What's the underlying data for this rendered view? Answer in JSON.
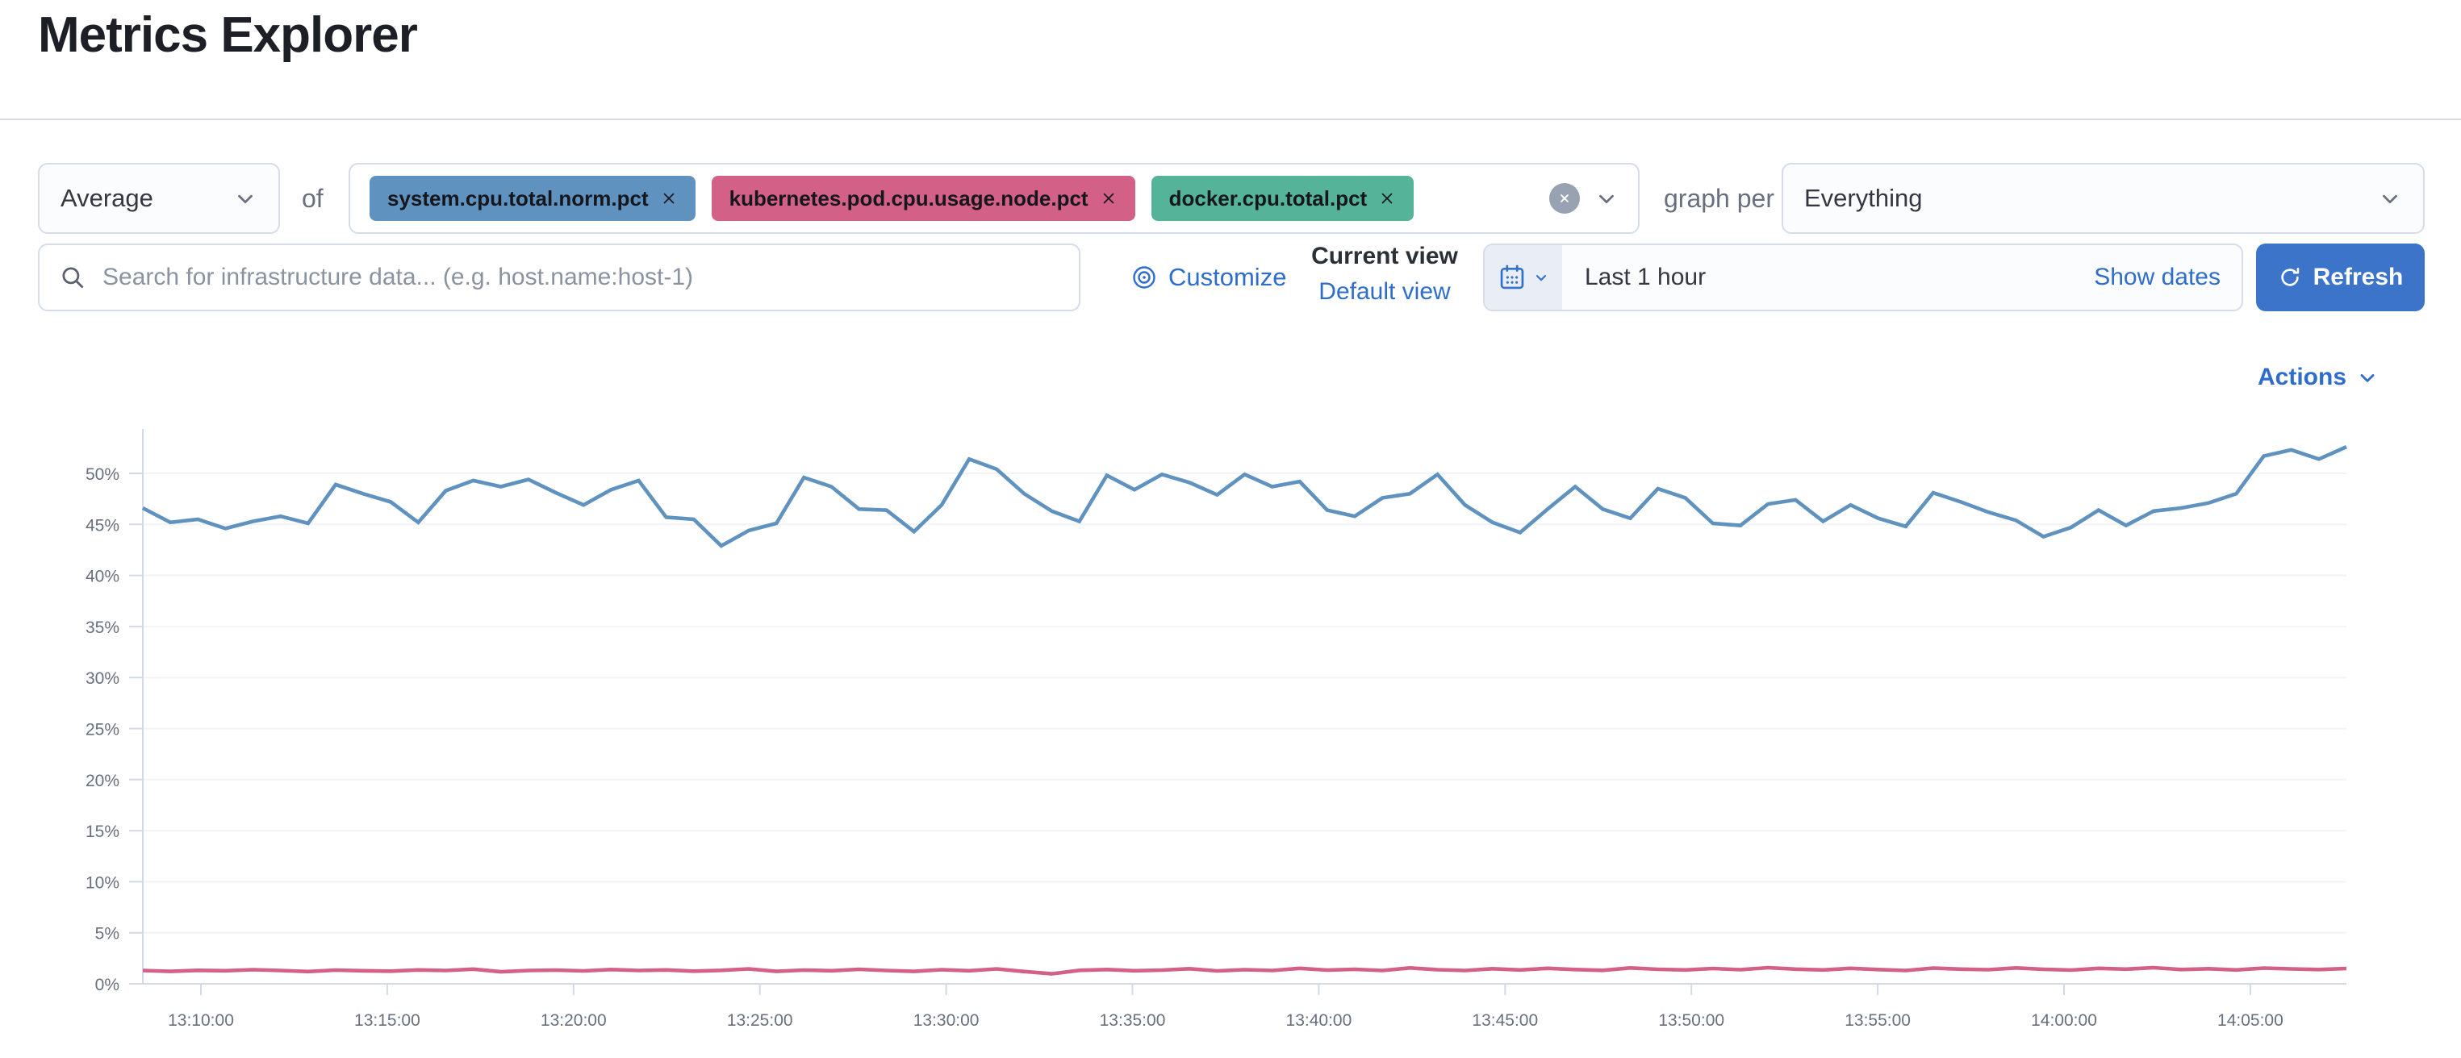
{
  "header": {
    "title": "Metrics Explorer"
  },
  "controls": {
    "aggregation_value": "Average",
    "of_label": "of",
    "metrics": [
      {
        "label": "system.cpu.total.norm.pct",
        "color": "#6092C0"
      },
      {
        "label": "kubernetes.pod.cpu.usage.node.pct",
        "color": "#D36086"
      },
      {
        "label": "docker.cpu.total.pct",
        "color": "#54B399"
      }
    ],
    "graph_per_label": "graph per",
    "graph_per_value": "Everything"
  },
  "search": {
    "placeholder": "Search for infrastructure data... (e.g. host.name:host-1)"
  },
  "view_controls": {
    "customize_label": "Customize",
    "current_view_label": "Current view",
    "default_view_label": "Default view"
  },
  "time_picker": {
    "value": "Last 1 hour",
    "show_dates_label": "Show dates",
    "refresh_label": "Refresh"
  },
  "actions": {
    "label": "Actions"
  },
  "colors": {
    "link": "#2F6DCC",
    "primary_button": "#3B74C9",
    "axis": "#D3DAE6",
    "grid": "#F1F3F8",
    "tick_text": "#69707D"
  },
  "chart_data": {
    "type": "line",
    "title": "",
    "xlabel": "",
    "ylabel": "",
    "legend": "none",
    "grid": true,
    "ylim": [
      0,
      54
    ],
    "y_tick_labels": [
      "0%",
      "5%",
      "10%",
      "15%",
      "20%",
      "25%",
      "30%",
      "35%",
      "40%",
      "45%",
      "50%"
    ],
    "x_tick_labels": [
      "13:10:00",
      "13:15:00",
      "13:20:00",
      "13:25:00",
      "13:30:00",
      "13:35:00",
      "13:40:00",
      "13:45:00",
      "13:50:00",
      "13:55:00",
      "14:00:00",
      "14:05:00"
    ],
    "series": [
      {
        "name": "system.cpu.total.norm.pct",
        "color": "#6092C0",
        "values": [
          46.6,
          45.2,
          45.5,
          44.6,
          45.3,
          45.8,
          45.1,
          48.9,
          48.0,
          47.2,
          45.2,
          48.3,
          49.3,
          48.7,
          49.4,
          48.1,
          46.9,
          48.4,
          49.3,
          45.7,
          45.5,
          42.9,
          44.4,
          45.1,
          49.6,
          48.7,
          46.5,
          46.4,
          44.3,
          46.9,
          51.4,
          50.4,
          48.0,
          46.3,
          45.3,
          49.8,
          48.4,
          49.9,
          49.1,
          47.9,
          49.9,
          48.7,
          49.2,
          46.4,
          45.8,
          47.6,
          48.0,
          49.9,
          46.9,
          45.2,
          44.2,
          46.5,
          48.7,
          46.5,
          45.6,
          48.5,
          47.6,
          45.1,
          44.9,
          47.0,
          47.4,
          45.3,
          46.9,
          45.6,
          44.8,
          48.1,
          47.2,
          46.2,
          45.4,
          43.8,
          44.7,
          46.4,
          44.9,
          46.3,
          46.6,
          47.1,
          48.0,
          51.7,
          52.3,
          51.4,
          52.6
        ]
      },
      {
        "name": "kubernetes.pod.cpu.usage.node.pct",
        "color": "#D36086",
        "values": [
          1.3,
          1.22,
          1.32,
          1.28,
          1.38,
          1.3,
          1.2,
          1.34,
          1.28,
          1.24,
          1.36,
          1.3,
          1.44,
          1.18,
          1.3,
          1.34,
          1.26,
          1.4,
          1.3,
          1.36,
          1.24,
          1.32,
          1.46,
          1.22,
          1.34,
          1.28,
          1.42,
          1.3,
          1.22,
          1.38,
          1.28,
          1.46,
          1.2,
          0.98,
          1.32,
          1.4,
          1.28,
          1.34,
          1.48,
          1.26,
          1.38,
          1.3,
          1.52,
          1.34,
          1.42,
          1.3,
          1.56,
          1.38,
          1.3,
          1.48,
          1.36,
          1.52,
          1.4,
          1.32,
          1.56,
          1.42,
          1.36,
          1.5,
          1.38,
          1.58,
          1.44,
          1.36,
          1.52,
          1.4,
          1.3,
          1.54,
          1.44,
          1.38,
          1.56,
          1.42,
          1.34,
          1.52,
          1.44,
          1.58,
          1.4,
          1.48,
          1.36,
          1.54,
          1.46,
          1.4,
          1.5
        ]
      }
    ]
  }
}
